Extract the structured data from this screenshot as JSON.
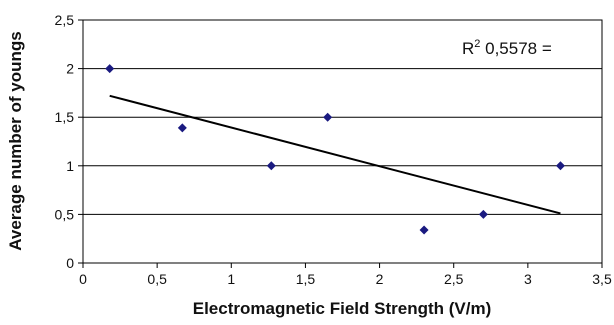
{
  "chart_data": {
    "type": "scatter",
    "title": "",
    "xlabel": "Electromagnetic Field Strength (V/m)",
    "ylabel": "Average number of youngs",
    "xlim": [
      0,
      3.5
    ],
    "ylim": [
      0,
      2.5
    ],
    "x_ticks": [
      "0",
      "0,5",
      "1",
      "1,5",
      "2",
      "2,5",
      "3",
      "3,5"
    ],
    "y_ticks": [
      "0",
      "0,5",
      "1",
      "1,5",
      "2",
      "2,5"
    ],
    "grid": "horizontal",
    "marker_color": "#1a1a80",
    "points": [
      {
        "x": 0.18,
        "y": 2.0
      },
      {
        "x": 0.67,
        "y": 1.39
      },
      {
        "x": 1.27,
        "y": 1.0
      },
      {
        "x": 1.65,
        "y": 1.5
      },
      {
        "x": 2.3,
        "y": 0.34
      },
      {
        "x": 2.7,
        "y": 0.5
      },
      {
        "x": 3.22,
        "y": 1.0
      }
    ],
    "trendline": {
      "x": [
        0.18,
        3.22
      ],
      "y": [
        1.72,
        0.51
      ]
    },
    "annotation": {
      "prefix": "R",
      "superscript": "2",
      "text": " 0,5578 ="
    }
  }
}
